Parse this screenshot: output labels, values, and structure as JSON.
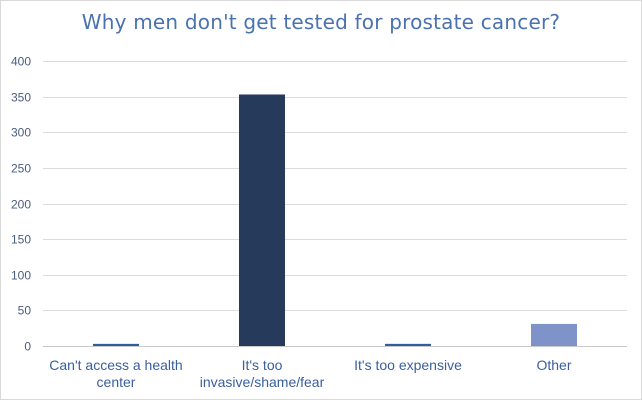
{
  "chart_data": {
    "type": "bar",
    "title": "Why men don't get tested for prostate cancer?",
    "categories": [
      [
        "Can't access a health",
        "center"
      ],
      [
        "It's too",
        "invasive/shame/fear"
      ],
      [
        "It's too expensive"
      ],
      [
        "Other"
      ]
    ],
    "values": [
      3,
      353,
      3,
      31
    ],
    "bar_colors": [
      "#2e5f9e",
      "#263a5c",
      "#2e5f9e",
      "#7f93c9"
    ],
    "ylim": [
      0,
      400
    ],
    "yticks": [
      0,
      50,
      100,
      150,
      200,
      250,
      300,
      350,
      400
    ],
    "grid": true,
    "xlabel": "",
    "ylabel": ""
  }
}
